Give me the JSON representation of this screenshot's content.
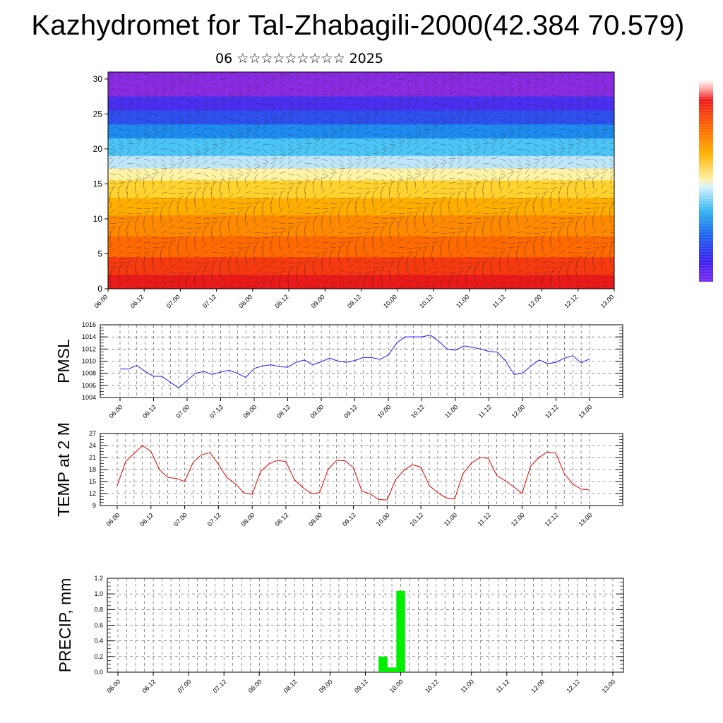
{
  "title": "Kazhydromet for Tal-Zhabagili-2000(42.384 70.579)",
  "subtitle": "06 ☆☆☆☆☆☆☆☆☆ 2025",
  "colors": {
    "pmsl_line": "#1a1aff",
    "temp_line": "#e00000",
    "precip_bar": "#00ee00"
  },
  "chart_data": [
    {
      "type": "heatmap",
      "title": "",
      "xlabel": "",
      "ylabel": "",
      "x_tick_labels": [
        "06.00",
        "06.12",
        "07.00",
        "07.12",
        "08.00",
        "08.12",
        "09.00",
        "09.12",
        "10.00",
        "10.12",
        "11.00",
        "11.12",
        "12.00",
        "12.12",
        "13.00"
      ],
      "y_ticks": [
        0,
        5,
        10,
        15,
        20,
        25,
        30
      ],
      "ylim": [
        0,
        31
      ],
      "colorbar": "white-red-orange-yellow-cyan-blue-purple",
      "overlay": "wind arrows"
    },
    {
      "type": "line",
      "xlabel": "",
      "ylabel": "PMSL",
      "x_tick_labels": [
        "06.00",
        "06.12",
        "07.00",
        "07.12",
        "08.00",
        "08.12",
        "09.00",
        "09.12",
        "10.00",
        "10.12",
        "11.00",
        "11.12",
        "12.00",
        "12.12",
        "13.00"
      ],
      "y_ticks": [
        1004,
        1006,
        1008,
        1010,
        1012,
        1014,
        1016
      ],
      "ylim": [
        1004,
        1016
      ],
      "grid": true,
      "series": [
        {
          "values": [
            1008.7,
            1008.7,
            1009.3,
            1008.3,
            1007.5,
            1007.5,
            1006.5,
            1005.6,
            1006.8,
            1008.0,
            1008.3,
            1007.8,
            1008.2,
            1008.5,
            1008.0,
            1007.3,
            1008.8,
            1009.2,
            1009.4,
            1009.1,
            1009.0,
            1009.8,
            1010.2,
            1009.4,
            1009.9,
            1010.5,
            1010.0,
            1009.8,
            1010.1,
            1010.6,
            1010.6,
            1010.3,
            1011.0,
            1013.0,
            1014.0,
            1014.0,
            1014.0,
            1014.3,
            1013.3,
            1012.0,
            1011.8,
            1012.5,
            1012.3,
            1012.0,
            1011.6,
            1011.5,
            1010.0,
            1007.8,
            1008.0,
            1009.2,
            1010.2,
            1009.6,
            1009.8,
            1010.5,
            1010.9,
            1009.7,
            1010.4
          ]
        }
      ]
    },
    {
      "type": "line",
      "xlabel": "",
      "ylabel": "TEMP at 2 M",
      "x_tick_labels": [
        "06.00",
        "06.12",
        "07.00",
        "07.12",
        "08.00",
        "08.12",
        "09.00",
        "09.12",
        "10.00",
        "10.12",
        "11.00",
        "11.12",
        "12.00",
        "12.12",
        "13.00"
      ],
      "y_ticks": [
        9,
        12,
        15,
        18,
        21,
        24,
        27
      ],
      "ylim": [
        9,
        27
      ],
      "grid": true,
      "series": [
        {
          "values": [
            14.0,
            20.0,
            22.0,
            24.0,
            22.5,
            18.0,
            16.0,
            15.8,
            15.0,
            19.8,
            21.7,
            22.2,
            19.3,
            16.0,
            14.5,
            12.2,
            11.8,
            17.5,
            19.4,
            20.3,
            20.0,
            15.5,
            13.5,
            12.0,
            12.2,
            18.0,
            20.3,
            20.2,
            18.5,
            12.6,
            11.9,
            10.5,
            10.4,
            15.5,
            17.8,
            19.2,
            18.6,
            14.0,
            12.2,
            10.9,
            10.6,
            17.0,
            19.6,
            21.0,
            20.8,
            16.5,
            15.2,
            13.7,
            12.0,
            18.8,
            21.0,
            22.4,
            22.1,
            17.0,
            14.4,
            13.1,
            12.9
          ]
        }
      ]
    },
    {
      "type": "bar",
      "xlabel": "",
      "ylabel": "PRECIP, mm",
      "x_tick_labels": [
        "06.00",
        "06.12",
        "07.00",
        "07.12",
        "08.00",
        "08.12",
        "09.00",
        "09.12",
        "10.00",
        "10.12",
        "11.00",
        "11.12",
        "12.00",
        "12.12",
        "13.00"
      ],
      "y_ticks": [
        "0.0",
        "0.2",
        "0.4",
        "0.6",
        "0.8",
        "1.0",
        "1.2"
      ],
      "ylim": [
        0,
        1.2
      ],
      "grid": true,
      "series": [
        {
          "values": [
            0,
            0,
            0,
            0,
            0,
            0,
            0,
            0,
            0,
            0,
            0,
            0,
            0,
            0,
            0,
            0,
            0,
            0,
            0,
            0,
            0,
            0,
            0,
            0,
            0,
            0,
            0,
            0,
            0,
            0,
            0.2,
            0.06,
            1.04,
            0,
            0,
            0,
            0,
            0,
            0,
            0,
            0,
            0,
            0,
            0,
            0,
            0,
            0,
            0,
            0,
            0,
            0,
            0,
            0,
            0,
            0,
            0,
            0
          ]
        }
      ]
    }
  ]
}
